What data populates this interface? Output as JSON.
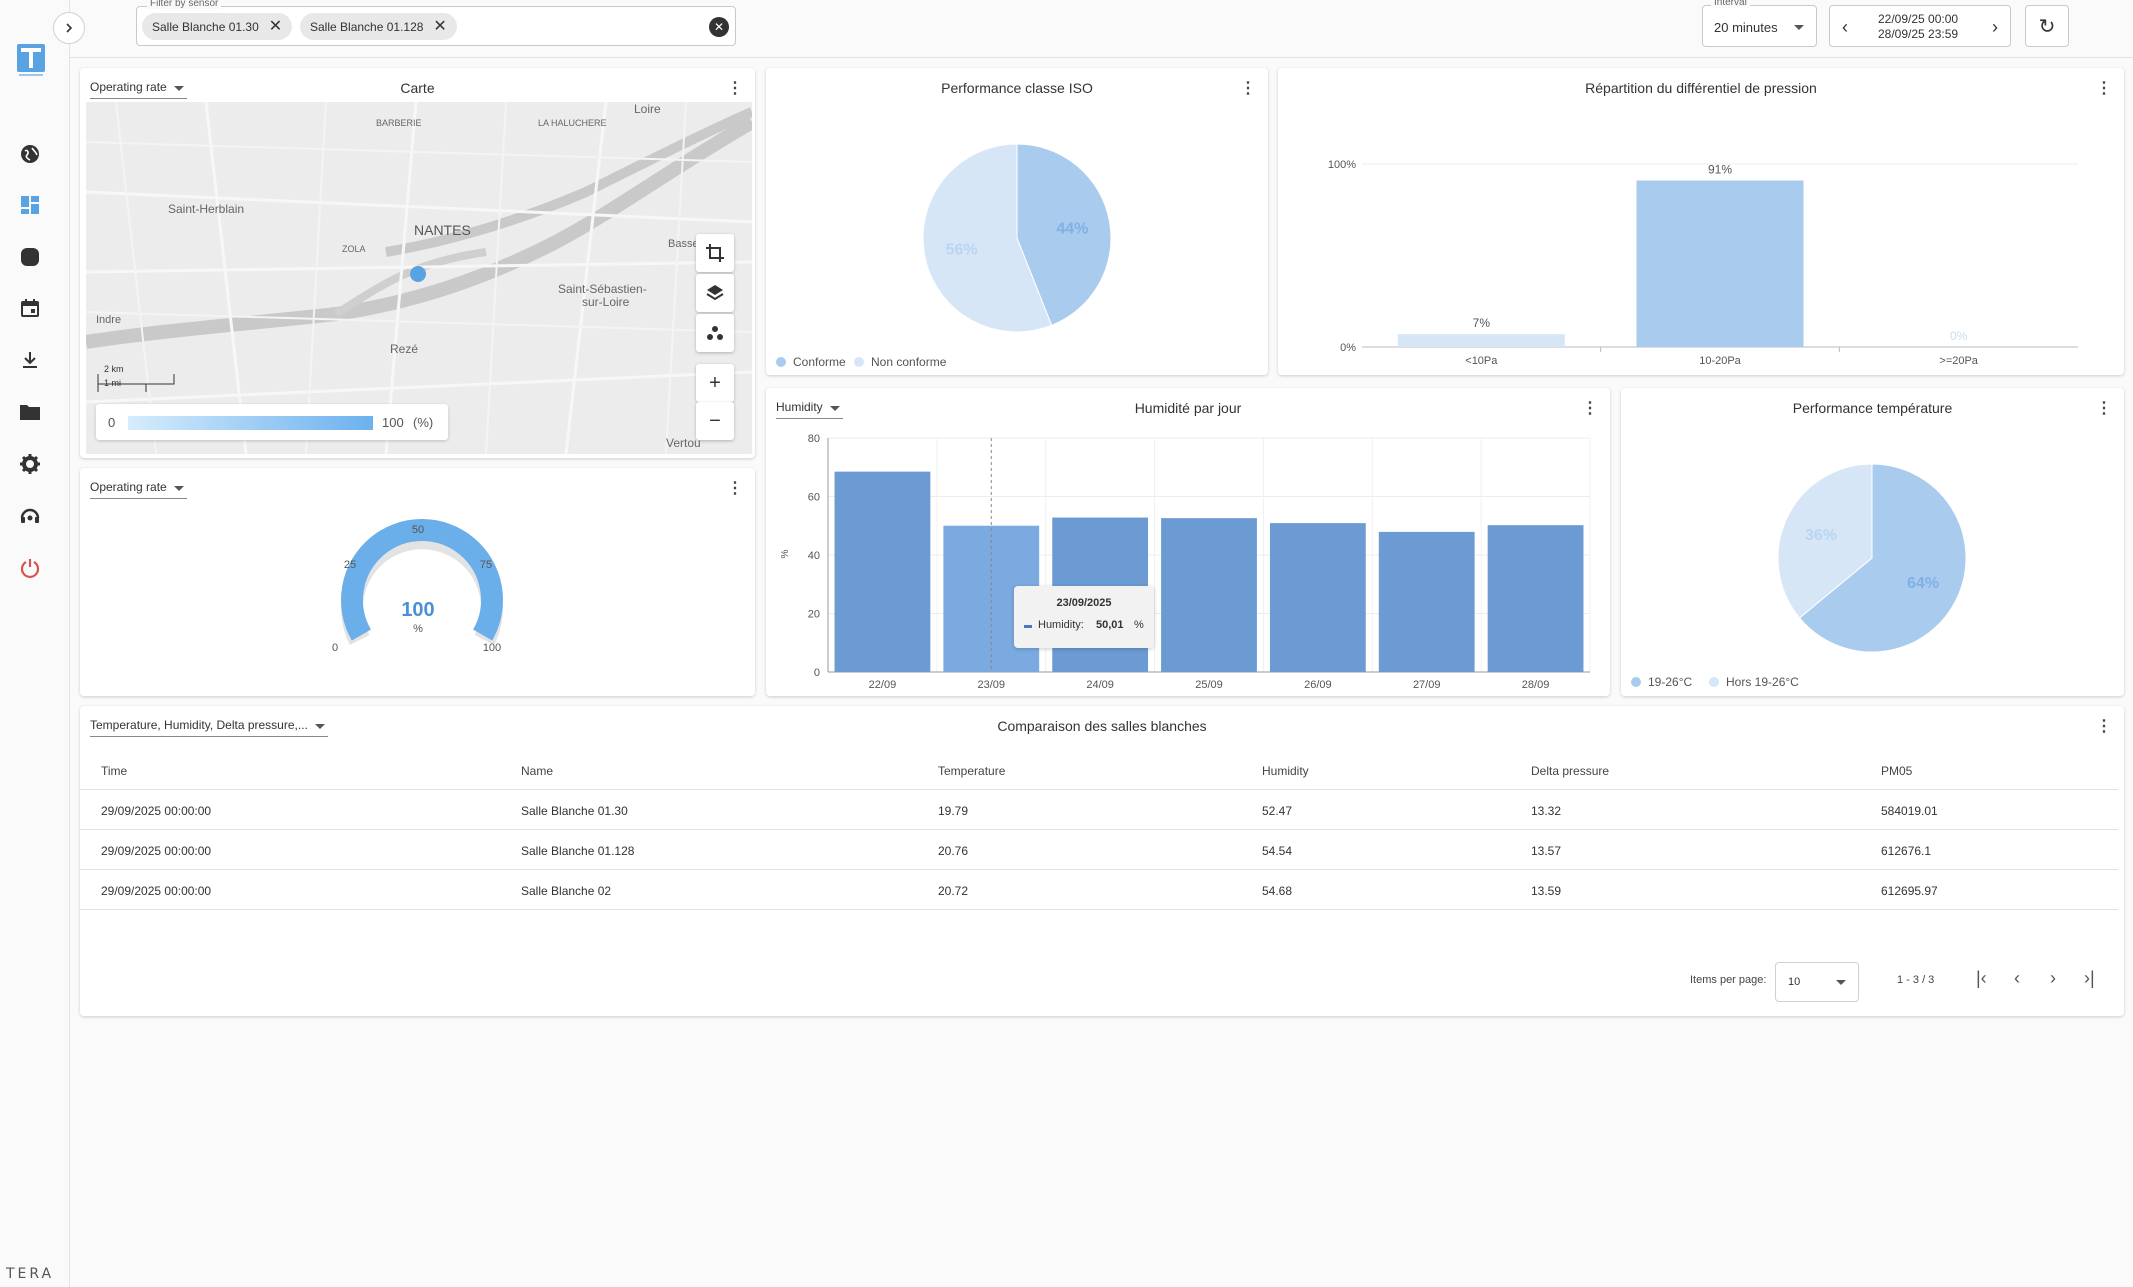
{
  "filter": {
    "label": "Filter by sensor",
    "chips": [
      "Salle Blanche 01.30",
      "Salle Blanche 01.128"
    ]
  },
  "interval": {
    "label": "Interval",
    "value": "20 minutes"
  },
  "daterange": {
    "start": "22/09/25 00:00",
    "end": "28/09/25 23:59"
  },
  "sidebar": {
    "brand": "TERA",
    "icons": [
      "globe-icon",
      "dashboard-icon",
      "sensor-icon",
      "calendar-icon",
      "download-icon",
      "folder-icon",
      "gear-icon",
      "support-icon",
      "power-icon"
    ]
  },
  "map_card": {
    "selector": "Operating rate",
    "title": "Carte",
    "places": [
      "Loire",
      "BARBERIE",
      "LA HALUCHERE",
      "Saint-Herblain",
      "NANTES",
      "ZOLA",
      "Basse",
      "Saint-Sébastien-",
      "sur-Loire",
      "Indre",
      "Rezé",
      "Vertou"
    ],
    "scale_km": "2 km",
    "scale_mi": "1 mi",
    "legend_min": "0",
    "legend_max": "100",
    "legend_unit": "(%)"
  },
  "gauge_card": {
    "selector": "Operating rate",
    "value": "100",
    "unit": "%",
    "ticks": [
      "0",
      "25",
      "50",
      "75",
      "100"
    ],
    "fraction": 1.0,
    "color": "#6aaeea"
  },
  "iso_card": {
    "title": "Performance classe ISO",
    "legend": [
      "Conforme",
      "Non conforme"
    ],
    "colors": [
      "#a9cbee",
      "#d7e6f7"
    ],
    "values": [
      44,
      56
    ],
    "labels": [
      "44%",
      "56%"
    ]
  },
  "pressure_card": {
    "title": "Répartition du différentiel de pression",
    "y_ticks": [
      "100%",
      "0%"
    ],
    "categories": [
      "<10Pa",
      "10-20Pa",
      ">=20Pa"
    ],
    "values": [
      7,
      91,
      0
    ],
    "value_labels": [
      "7%",
      "91%",
      "0%"
    ],
    "colors": [
      "#d7e6f7",
      "#a9cbee",
      "#d7e6f7"
    ]
  },
  "humidity_card": {
    "selector": "Humidity",
    "title": "Humidité par jour",
    "y_unit": "%",
    "y_ticks": [
      "0",
      "20",
      "40",
      "60",
      "80"
    ],
    "tooltip": {
      "date": "23/09/2025",
      "series": "Humidity:",
      "value": "50,01",
      "unit": "%"
    }
  },
  "temp_card": {
    "title": "Performance température",
    "legend": [
      "19-26°C",
      "Hors 19-26°C"
    ],
    "colors": [
      "#a9cbee",
      "#d7e6f7"
    ],
    "values": [
      64,
      36
    ],
    "labels": [
      "64%",
      "36%"
    ]
  },
  "table_card": {
    "selector": "Temperature, Humidity, Delta pressure,...",
    "title": "Comparaison des salles blanches",
    "columns": [
      "Time",
      "Name",
      "Temperature",
      "Humidity",
      "Delta pressure",
      "PM05"
    ],
    "rows": [
      [
        "29/09/2025 00:00:00",
        "Salle Blanche 01.30",
        "19.79",
        "52.47",
        "13.32",
        "584019.01"
      ],
      [
        "29/09/2025 00:00:00",
        "Salle Blanche 01.128",
        "20.76",
        "54.54",
        "13.57",
        "612676.1"
      ],
      [
        "29/09/2025 00:00:00",
        "Salle Blanche 02",
        "20.72",
        "54.68",
        "13.59",
        "612695.97"
      ]
    ],
    "items_per_page_label": "Items per page:",
    "items_per_page": "10",
    "range": "1 - 3 / 3"
  },
  "chart_data": [
    {
      "type": "bar",
      "title": "Humidité par jour",
      "categories": [
        "22/09",
        "23/09",
        "24/09",
        "25/09",
        "26/09",
        "27/09",
        "28/09"
      ],
      "series": [
        {
          "name": "Humidity",
          "values": [
            68.5,
            50.01,
            52.8,
            52.6,
            50.9,
            47.9,
            50.2
          ]
        }
      ],
      "ylabel": "%",
      "ylim": [
        0,
        80
      ],
      "grid": true,
      "color": "#6b9bd2",
      "highlight_color": "#7aaae0"
    },
    {
      "type": "bar",
      "title": "Répartition du différentiel de pression",
      "categories": [
        "<10Pa",
        "10-20Pa",
        ">=20Pa"
      ],
      "values": [
        7,
        91,
        0
      ],
      "ylim": [
        0,
        100
      ]
    },
    {
      "type": "pie",
      "title": "Performance classe ISO",
      "categories": [
        "Conforme",
        "Non conforme"
      ],
      "values": [
        44,
        56
      ]
    },
    {
      "type": "pie",
      "title": "Performance température",
      "categories": [
        "19-26°C",
        "Hors 19-26°C"
      ],
      "values": [
        64,
        36
      ]
    }
  ]
}
